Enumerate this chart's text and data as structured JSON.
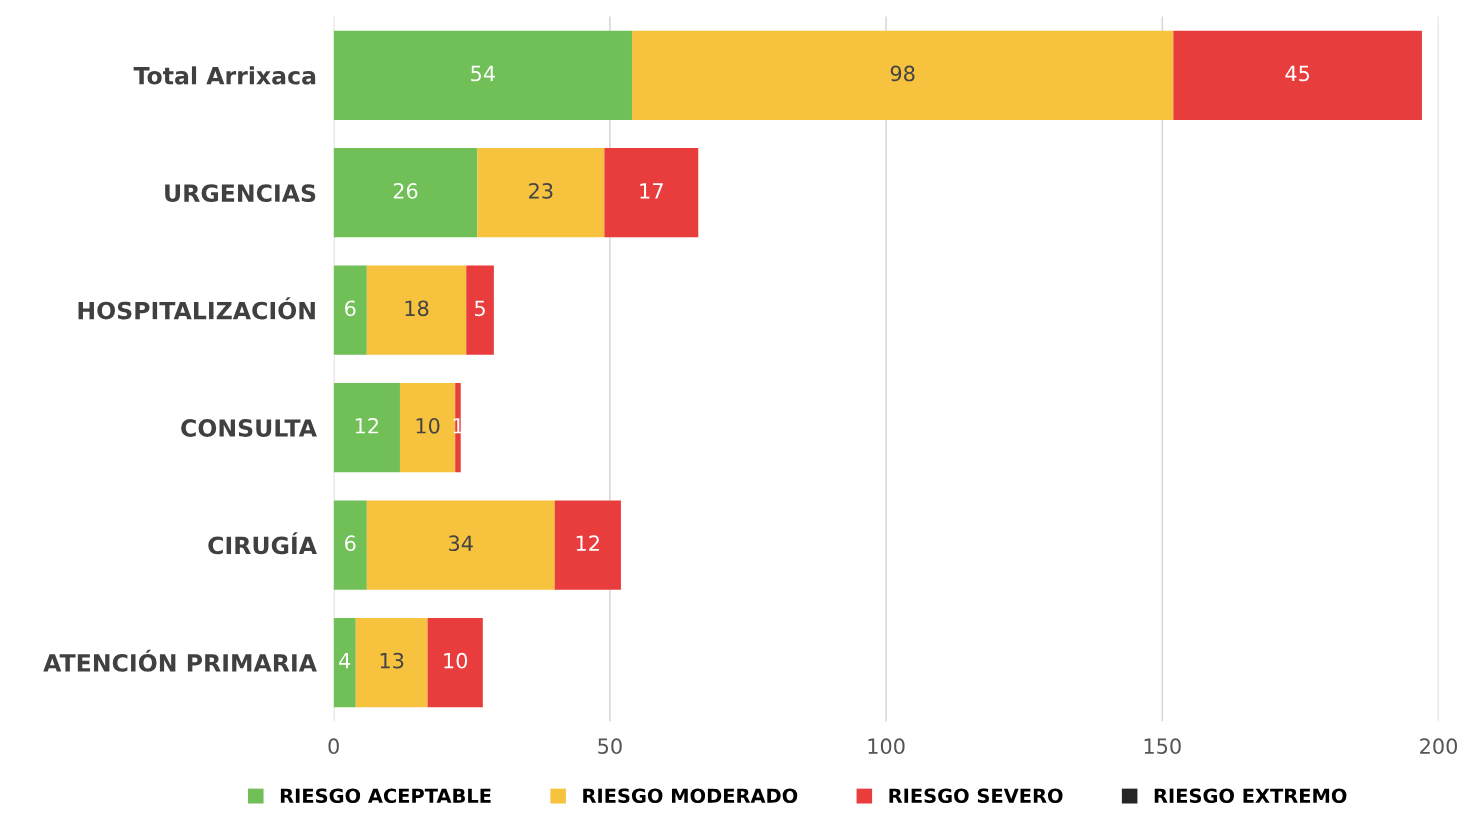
{
  "chart_data": {
    "type": "bar",
    "orientation": "horizontal",
    "stacked": true,
    "data_labels": true,
    "grid": "x",
    "legend": "bottom",
    "categories": [
      "Total Arrixaca",
      "URGENCIAS",
      "HOSPITALIZACIÓN",
      "CONSULTA",
      "CIRUGÍA",
      "ATENCIÓN PRIMARIA"
    ],
    "series": [
      {
        "name": "RIESGO ACEPTABLE",
        "color": "#70bf57",
        "values": [
          54,
          26,
          6,
          12,
          6,
          4
        ]
      },
      {
        "name": "RIESGO MODERADO",
        "color": "#f7c23e",
        "values": [
          98,
          23,
          18,
          10,
          34,
          13
        ]
      },
      {
        "name": "RIESGO SEVERO",
        "color": "#e93d3d",
        "values": [
          45,
          17,
          5,
          1,
          12,
          10
        ]
      },
      {
        "name": "RIESGO EXTREMO",
        "color": "#262626",
        "values": [
          null,
          null,
          null,
          null,
          null,
          null
        ]
      }
    ],
    "xlim": [
      0,
      200
    ],
    "xticks": [
      0,
      50,
      100,
      150,
      200
    ]
  }
}
